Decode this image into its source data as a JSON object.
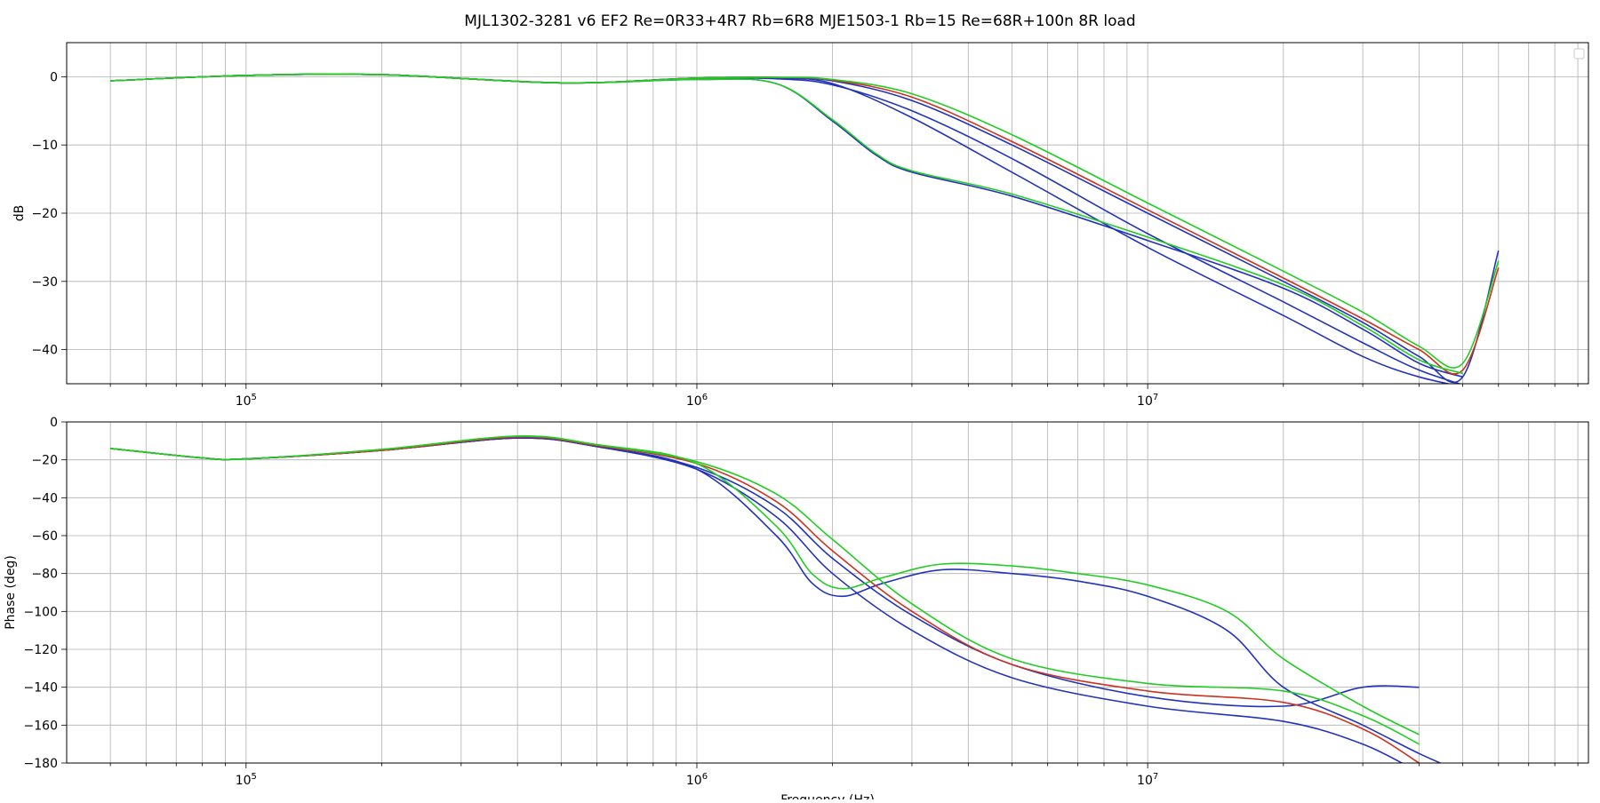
{
  "chart_data": [
    {
      "type": "line",
      "title": "MJL1302-3281 v6 EF2 Re=0R33+4R7 Rb=6R8 MJE1503-1 Rb=15 Re=68R+100n 8R load",
      "xlabel": "",
      "ylabel": "dB",
      "xscale": "log",
      "xlim": [
        40000,
        95000000
      ],
      "ylim": [
        -45,
        5
      ],
      "yticks": [
        0,
        -10,
        -20,
        -30,
        -40
      ],
      "ytick_labels": [
        "0",
        "−10",
        "−20",
        "−30",
        "−40"
      ],
      "xticks": [
        100000,
        1000000,
        10000000
      ],
      "xtick_labels": [
        "10^5",
        "10^6",
        "10^7"
      ],
      "grid": true,
      "legend": "top-right, empty",
      "series_colors": [
        "#2233bb",
        "#cc3322",
        "#22cc22"
      ],
      "series": [
        {
          "color": "#2233bb",
          "x": [
            50000,
            100000,
            200000,
            500000,
            1000000,
            1500000,
            2000000,
            3000000,
            5000000,
            10000000,
            20000000,
            30000000,
            40000000,
            55000000
          ],
          "y": [
            -0.6,
            0.2,
            0.3,
            -0.9,
            -0.2,
            -0.2,
            -1.0,
            -6,
            -14,
            -25,
            -35,
            -41,
            -44,
            -46
          ]
        },
        {
          "color": "#2233bb",
          "x": [
            50000,
            100000,
            200000,
            500000,
            1000000,
            1500000,
            2000000,
            3000000,
            5000000,
            10000000,
            20000000,
            30000000,
            40000000,
            55000000
          ],
          "y": [
            -0.6,
            0.2,
            0.3,
            -0.9,
            -0.2,
            -0.3,
            -1.2,
            -5,
            -12,
            -23,
            -33,
            -39,
            -43,
            -46
          ]
        },
        {
          "color": "#2233bb",
          "x": [
            50000,
            100000,
            200000,
            500000,
            1000000,
            1500000,
            2000000,
            2500000,
            3000000,
            5000000,
            10000000,
            20000000,
            30000000,
            40000000,
            50000000
          ],
          "y": [
            -0.6,
            0.2,
            0.3,
            -0.9,
            -0.4,
            -1.0,
            -6.5,
            -11.5,
            -14.0,
            -17.5,
            -24.0,
            -31.0,
            -37.0,
            -42.0,
            -44.0
          ]
        },
        {
          "color": "#2233bb",
          "x": [
            50000,
            100000,
            200000,
            500000,
            1000000,
            1500000,
            2000000,
            3000000,
            5000000,
            10000000,
            20000000,
            30000000,
            40000000,
            50000000,
            60000000
          ],
          "y": [
            -0.6,
            0.2,
            0.3,
            -0.9,
            -0.2,
            -0.1,
            -0.6,
            -3.5,
            -10,
            -20,
            -30,
            -36,
            -41,
            -44,
            -25.5
          ]
        },
        {
          "color": "#cc3322",
          "x": [
            50000,
            100000,
            200000,
            500000,
            1000000,
            1500000,
            2000000,
            3000000,
            5000000,
            10000000,
            20000000,
            30000000,
            40000000,
            50000000,
            60000000
          ],
          "y": [
            -0.6,
            0.2,
            0.3,
            -0.9,
            -0.2,
            -0.1,
            -0.5,
            -3,
            -9.5,
            -19.5,
            -29.5,
            -35.5,
            -40,
            -43,
            -28
          ]
        },
        {
          "color": "#22cc22",
          "x": [
            50000,
            100000,
            200000,
            500000,
            1000000,
            1500000,
            2000000,
            3000000,
            5000000,
            10000000,
            20000000,
            30000000,
            40000000,
            50000000,
            60000000
          ],
          "y": [
            -0.6,
            0.2,
            0.3,
            -0.9,
            -0.2,
            -0.1,
            -0.4,
            -2.5,
            -8.5,
            -18.5,
            -28.5,
            -34.5,
            -39.5,
            -42,
            -27
          ]
        },
        {
          "color": "#22cc22",
          "x": [
            50000,
            100000,
            200000,
            500000,
            1000000,
            1500000,
            2000000,
            2500000,
            3000000,
            5000000,
            10000000,
            20000000,
            30000000,
            40000000,
            50000000
          ],
          "y": [
            -0.6,
            0.2,
            0.3,
            -0.9,
            -0.4,
            -1.0,
            -6.3,
            -11.3,
            -13.8,
            -17.2,
            -23.5,
            -30.5,
            -36.5,
            -41.5,
            -43.5
          ]
        }
      ]
    },
    {
      "type": "line",
      "title": "",
      "xlabel": "Frequency (Hz)",
      "ylabel": "Phase (deg)",
      "xscale": "log",
      "xlim": [
        40000,
        95000000
      ],
      "ylim": [
        -180,
        0
      ],
      "yticks": [
        0,
        -20,
        -40,
        -60,
        -80,
        -100,
        -120,
        -140,
        -160,
        -180
      ],
      "ytick_labels": [
        "0",
        "−20",
        "−40",
        "−60",
        "−80",
        "−100",
        "−120",
        "−140",
        "−160",
        "−180"
      ],
      "xticks": [
        100000,
        1000000,
        10000000
      ],
      "xtick_labels": [
        "10^5",
        "10^6",
        "10^7"
      ],
      "grid": true,
      "series": [
        {
          "color": "#2233bb",
          "x": [
            50000,
            80000,
            100000,
            200000,
            400000,
            600000,
            1000000,
            1500000,
            2000000,
            3000000,
            5000000,
            10000000,
            20000000,
            30000000,
            40000000
          ],
          "y": [
            -14,
            -19,
            -19.5,
            -15,
            -8.5,
            -13,
            -25,
            -50,
            -80,
            -110,
            -135,
            -150,
            -158,
            -170,
            -185
          ]
        },
        {
          "color": "#2233bb",
          "x": [
            50000,
            80000,
            100000,
            200000,
            400000,
            600000,
            1000000,
            1500000,
            2000000,
            3000000,
            5000000,
            10000000,
            20000000,
            30000000,
            40000000
          ],
          "y": [
            -14,
            -19,
            -19.5,
            -15,
            -8.5,
            -13,
            -24,
            -45,
            -72,
            -102,
            -128,
            -145,
            -150,
            -140,
            -140
          ]
        },
        {
          "color": "#2233bb",
          "x": [
            50000,
            80000,
            100000,
            200000,
            400000,
            600000,
            1000000,
            1500000,
            1800000,
            2100000,
            2600000,
            3500000,
            5000000,
            7000000,
            10000000,
            15000000,
            20000000,
            30000000,
            40000000,
            50000000
          ],
          "y": [
            -14,
            -19,
            -19.5,
            -15,
            -8.5,
            -13,
            -25,
            -60,
            -85,
            -92,
            -85,
            -78,
            -80,
            -84,
            -92,
            -110,
            -140,
            -160,
            -175,
            -185
          ]
        },
        {
          "color": "#cc3322",
          "x": [
            50000,
            80000,
            100000,
            200000,
            400000,
            600000,
            1000000,
            1500000,
            2000000,
            3000000,
            5000000,
            10000000,
            20000000,
            30000000,
            40000000
          ],
          "y": [
            -14,
            -19,
            -19.5,
            -15,
            -8,
            -12.5,
            -22,
            -42,
            -68,
            -100,
            -128,
            -142,
            -148,
            -162,
            -180
          ]
        },
        {
          "color": "#22cc22",
          "x": [
            50000,
            80000,
            100000,
            200000,
            400000,
            600000,
            1000000,
            1500000,
            2000000,
            3000000,
            5000000,
            10000000,
            20000000,
            30000000,
            40000000
          ],
          "y": [
            -14,
            -19,
            -19.5,
            -14.5,
            -7.5,
            -12,
            -21,
            -38,
            -62,
            -96,
            -125,
            -138,
            -142,
            -155,
            -170
          ]
        },
        {
          "color": "#22cc22",
          "x": [
            50000,
            80000,
            100000,
            200000,
            400000,
            600000,
            1000000,
            1500000,
            1800000,
            2100000,
            2600000,
            3500000,
            5000000,
            7000000,
            10000000,
            15000000,
            20000000,
            30000000,
            40000000
          ],
          "y": [
            -14,
            -19,
            -19.5,
            -14.5,
            -7.5,
            -12,
            -22,
            -55,
            -80,
            -88,
            -82,
            -75,
            -76,
            -80,
            -86,
            -100,
            -125,
            -150,
            -165
          ]
        }
      ]
    }
  ]
}
